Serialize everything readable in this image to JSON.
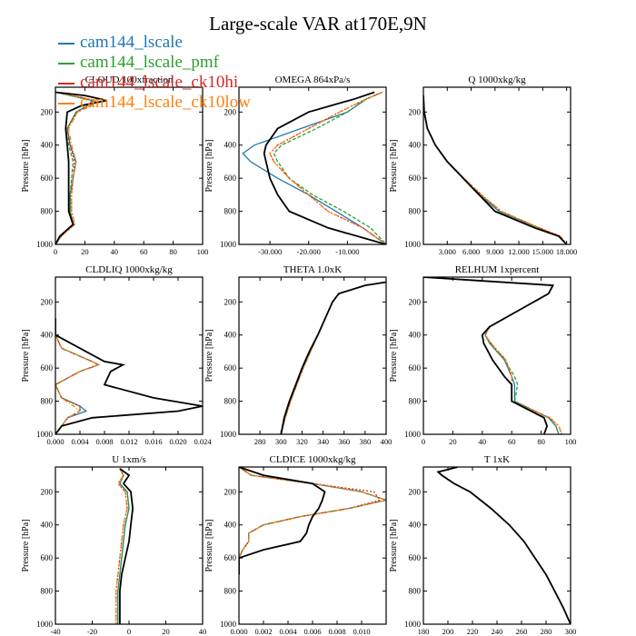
{
  "title": "Large-scale VAR at170E,9N",
  "legend": [
    {
      "name": "cam144_lscale",
      "color": "#1f77b4"
    },
    {
      "name": "cam144_lscale_pmf",
      "color": "#2ca02c"
    },
    {
      "name": "cam144_lscale_ck10hi",
      "color": "#d62728"
    },
    {
      "name": "cam144_lscale_ck10low",
      "color": "#ff7f0e"
    }
  ],
  "reference_line_color": "#000000",
  "chart_data": [
    {
      "type": "line",
      "title": "CLOUD 100xfraction",
      "ylabel": "Pressure [hPa]",
      "xlim": [
        0,
        100
      ],
      "ylim": [
        1000,
        50
      ],
      "xticks": [
        "0",
        "20",
        "40",
        "60",
        "80",
        "100"
      ],
      "xtick_values": [
        0,
        20,
        40,
        60,
        80,
        100
      ],
      "yticks": [
        "200",
        "400",
        "600",
        "800",
        "1000"
      ],
      "ytick_values": [
        200,
        400,
        600,
        800,
        1000
      ],
      "pressure": [
        80,
        100,
        130,
        160,
        200,
        300,
        400,
        500,
        600,
        700,
        800,
        880,
        950,
        1000
      ],
      "reference": [
        0,
        20,
        35,
        18,
        8,
        7,
        8,
        9,
        9,
        9,
        9,
        12,
        3,
        0
      ],
      "series": [
        {
          "values": [
            0,
            10,
            25,
            22,
            14,
            8,
            10,
            14,
            12,
            10,
            10,
            12,
            4,
            0
          ]
        },
        {
          "values": [
            0,
            10,
            26,
            22,
            14,
            8,
            9,
            12,
            11,
            10,
            10,
            12,
            4,
            0
          ]
        },
        {
          "values": [
            0,
            12,
            27,
            24,
            15,
            8,
            10,
            13,
            12,
            11,
            11,
            13,
            4,
            0
          ]
        },
        {
          "values": [
            0,
            12,
            28,
            25,
            15,
            9,
            11,
            14,
            12,
            11,
            11,
            13,
            4,
            0
          ]
        }
      ]
    },
    {
      "type": "line",
      "title": "OMEGA 864xPa/s",
      "ylabel": "Pressure [hPa]",
      "xlim": [
        -38,
        0
      ],
      "ylim": [
        1000,
        50
      ],
      "xticks": [
        "-30.000",
        "-20.000",
        "-10.000"
      ],
      "xtick_values": [
        -30,
        -20,
        -10
      ],
      "yticks": [
        "200",
        "400",
        "600",
        "800",
        "1000"
      ],
      "ytick_values": [
        200,
        400,
        600,
        800,
        1000
      ],
      "pressure": [
        80,
        120,
        200,
        300,
        400,
        450,
        500,
        600,
        700,
        800,
        900,
        1000
      ],
      "reference": [
        -3,
        -8,
        -20,
        -28,
        -31,
        -31.5,
        -31,
        -30,
        -28,
        -25,
        -15,
        0
      ],
      "series": [
        {
          "values": [
            -1,
            -5,
            -10,
            -22,
            -34,
            -37,
            -35,
            -28,
            -20,
            -13,
            -6,
            0
          ]
        },
        {
          "values": [
            -1,
            -5,
            -10,
            -18,
            -27,
            -29,
            -28,
            -25,
            -19,
            -11,
            -4,
            0
          ]
        },
        {
          "values": [
            -1,
            -5,
            -12,
            -20,
            -28,
            -30,
            -29,
            -25,
            -20,
            -15,
            -6,
            0
          ]
        },
        {
          "values": [
            -1,
            -5,
            -12,
            -20,
            -28,
            -30,
            -29,
            -25,
            -20,
            -15,
            -6,
            0
          ]
        }
      ]
    },
    {
      "type": "line",
      "title": "Q 1000xkg/kg",
      "ylabel": "Pressure [hPa]",
      "xlim": [
        0,
        18.5
      ],
      "ylim": [
        1000,
        50
      ],
      "xticks": [
        "3.000",
        "6.000",
        "9.000",
        "12.000",
        "15.000",
        "18.000"
      ],
      "xtick_values": [
        3,
        6,
        9,
        12,
        15,
        18
      ],
      "yticks": [
        "200",
        "400",
        "600",
        "800",
        "1000"
      ],
      "ytick_values": [
        200,
        400,
        600,
        800,
        1000
      ],
      "pressure": [
        100,
        200,
        300,
        400,
        500,
        600,
        700,
        800,
        900,
        950,
        1000
      ],
      "reference": [
        0,
        0.1,
        0.5,
        1.5,
        3,
        5,
        7,
        9,
        14,
        17,
        18
      ],
      "series": [
        {
          "values": [
            0,
            0.1,
            0.5,
            1.5,
            3,
            5,
            7,
            9.5,
            14.5,
            17,
            18
          ]
        },
        {
          "values": [
            0,
            0.1,
            0.5,
            1.5,
            3,
            5,
            7.2,
            9.6,
            14.5,
            17,
            18
          ]
        },
        {
          "values": [
            0,
            0.1,
            0.5,
            1.5,
            3,
            5.1,
            7.3,
            9.8,
            14.6,
            17.2,
            18
          ]
        },
        {
          "values": [
            0,
            0.1,
            0.5,
            1.5,
            3,
            5.1,
            7.3,
            9.8,
            14.6,
            17.2,
            18
          ]
        }
      ]
    },
    {
      "type": "line",
      "title": "CLDLIQ 1000xkg/kg",
      "ylabel": "Pressure [hPa]",
      "xlim": [
        0,
        0.024
      ],
      "ylim": [
        1000,
        50
      ],
      "xticks": [
        "0.000",
        "0.004",
        "0.008",
        "0.012",
        "0.016",
        "0.020",
        "0.024"
      ],
      "xtick_values": [
        0,
        0.004,
        0.008,
        0.012,
        0.016,
        0.02,
        0.024
      ],
      "yticks": [
        "200",
        "400",
        "600",
        "800",
        "1000"
      ],
      "ytick_values": [
        200,
        400,
        600,
        800,
        1000
      ],
      "pressure": [
        300,
        400,
        480,
        560,
        580,
        620,
        700,
        780,
        830,
        860,
        900,
        950,
        1000
      ],
      "reference": [
        0,
        0,
        0.004,
        0.008,
        0.011,
        0.009,
        0.008,
        0.016,
        0.024,
        0.02,
        0.006,
        0.001,
        0
      ],
      "series": [
        {
          "values": [
            0,
            0,
            0.001,
            0.006,
            0.007,
            0.004,
            0,
            0.001,
            0.004,
            0.005,
            0.002,
            0.001,
            0
          ]
        },
        {
          "values": [
            0,
            0,
            0.001,
            0.006,
            0.007,
            0.004,
            0,
            0.001,
            0.004,
            0.004,
            0.002,
            0.001,
            0
          ]
        },
        {
          "values": [
            0,
            0,
            0.001,
            0.006,
            0.007,
            0.004,
            0,
            0.001,
            0.004,
            0.004,
            0.002,
            0.001,
            0
          ]
        },
        {
          "values": [
            0,
            0,
            0.001,
            0.006,
            0.007,
            0.004,
            0,
            0.001,
            0.003,
            0.004,
            0.002,
            0.001,
            0
          ]
        }
      ]
    },
    {
      "type": "line",
      "title": "THETA 1.0xK",
      "ylabel": "Pressure [hPa]",
      "xlim": [
        260,
        400
      ],
      "ylim": [
        1000,
        50
      ],
      "xticks": [
        "280",
        "300",
        "320",
        "340",
        "360",
        "380",
        "400"
      ],
      "xtick_values": [
        280,
        300,
        320,
        340,
        360,
        380,
        400
      ],
      "yticks": [
        "200",
        "400",
        "600",
        "800",
        "1000"
      ],
      "ytick_values": [
        200,
        400,
        600,
        800,
        1000
      ],
      "pressure": [
        80,
        100,
        150,
        200,
        300,
        400,
        500,
        600,
        700,
        800,
        900,
        1000
      ],
      "reference": [
        400,
        380,
        355,
        349,
        342,
        335,
        327,
        320,
        314,
        308,
        303,
        300
      ],
      "series": [
        {
          "values": [
            400,
            380,
            355,
            349,
            342,
            335,
            328,
            321,
            315,
            309,
            304,
            300
          ]
        },
        {
          "values": [
            400,
            380,
            355,
            349,
            342,
            335,
            328,
            321,
            315,
            309,
            304,
            300
          ]
        },
        {
          "values": [
            400,
            380,
            355,
            349,
            342,
            335,
            328,
            321,
            315,
            309,
            304,
            300
          ]
        },
        {
          "values": [
            400,
            380,
            355,
            349,
            342,
            335,
            328,
            321,
            315,
            309,
            304,
            300
          ]
        }
      ]
    },
    {
      "type": "line",
      "title": "RELHUM 1xpercent",
      "ylabel": "Pressure [hPa]",
      "xlim": [
        0,
        100
      ],
      "ylim": [
        1000,
        50
      ],
      "xticks": [
        "0",
        "20",
        "40",
        "60",
        "80",
        "100"
      ],
      "xtick_values": [
        0,
        20,
        40,
        60,
        80,
        100
      ],
      "yticks": [
        "200",
        "400",
        "600",
        "800",
        "1000"
      ],
      "ytick_values": [
        200,
        400,
        600,
        800,
        1000
      ],
      "pressure": [
        50,
        100,
        150,
        250,
        350,
        400,
        450,
        550,
        650,
        700,
        800,
        900,
        950,
        1000
      ],
      "reference": [
        0,
        88,
        85,
        65,
        45,
        40,
        41,
        47,
        55,
        60,
        60,
        82,
        84,
        82
      ],
      "series": [
        {
          "values": [
            0,
            88,
            85,
            65,
            45,
            42,
            45,
            55,
            60,
            62,
            62,
            85,
            90,
            92
          ]
        },
        {
          "values": [
            0,
            88,
            85,
            65,
            45,
            42,
            45,
            55,
            62,
            64,
            62,
            85,
            90,
            92
          ]
        },
        {
          "values": [
            0,
            88,
            85,
            65,
            45,
            42,
            46,
            56,
            60,
            60,
            60,
            86,
            92,
            94
          ]
        },
        {
          "values": [
            0,
            88,
            85,
            65,
            45,
            42,
            46,
            56,
            60,
            60,
            60,
            86,
            92,
            94
          ]
        }
      ]
    },
    {
      "type": "line",
      "title": "U 1xm/s",
      "ylabel": "Pressure [hPa]",
      "xlim": [
        -40,
        40
      ],
      "ylim": [
        1000,
        50
      ],
      "xticks": [
        "-40",
        "-20",
        "0",
        "20",
        "40"
      ],
      "xtick_values": [
        -40,
        -20,
        0,
        20,
        40
      ],
      "yticks": [
        "200",
        "400",
        "600",
        "800",
        "1000"
      ],
      "ytick_values": [
        200,
        400,
        600,
        800,
        1000
      ],
      "pressure": [
        60,
        100,
        150,
        200,
        300,
        400,
        500,
        600,
        700,
        800,
        900,
        1000
      ],
      "reference": [
        -5,
        0,
        -3,
        1,
        2,
        1,
        0,
        -2,
        -4,
        -5,
        -5,
        -5
      ],
      "series": [
        {
          "values": [
            -5,
            -3,
            -5,
            -1,
            0,
            -2,
            -3,
            -4,
            -5,
            -6,
            -6,
            -6
          ]
        },
        {
          "values": [
            -5,
            -3,
            -5,
            -1,
            0,
            -2,
            -3,
            -4,
            -5,
            -6,
            -6,
            -6
          ]
        },
        {
          "values": [
            -5,
            -3,
            -6,
            -2,
            -1,
            -3,
            -4,
            -5,
            -6,
            -7,
            -7,
            -7
          ]
        },
        {
          "values": [
            -5,
            -3,
            -6,
            -2,
            -1,
            -3,
            -4,
            -5,
            -6,
            -7,
            -7,
            -7
          ]
        }
      ]
    },
    {
      "type": "line",
      "title": "CLDICE 1000xkg/kg",
      "ylabel": "Pressure [hPa]",
      "xlim": [
        0,
        0.012
      ],
      "ylim": [
        1000,
        50
      ],
      "xticks": [
        "0.000",
        "0.002",
        "0.004",
        "0.006",
        "0.008",
        "0.010"
      ],
      "xtick_values": [
        0,
        0.002,
        0.004,
        0.006,
        0.008,
        0.01
      ],
      "yticks": [
        "200",
        "400",
        "600",
        "800",
        "1000"
      ],
      "ytick_values": [
        200,
        400,
        600,
        800,
        1000
      ],
      "pressure": [
        50,
        100,
        150,
        200,
        250,
        300,
        350,
        400,
        450,
        500,
        550,
        600,
        700
      ],
      "reference": [
        0,
        0.002,
        0.006,
        0.007,
        0.0068,
        0.0065,
        0.006,
        0.0057,
        0.0055,
        0.005,
        0.002,
        0,
        0
      ],
      "series": [
        {
          "values": [
            0,
            0.001,
            0.006,
            0.01,
            0.012,
            0.009,
            0.005,
            0.002,
            0.0008,
            0.0008,
            0.0003,
            0,
            0
          ]
        },
        {
          "values": [
            0,
            0.001,
            0.006,
            0.01,
            0.012,
            0.009,
            0.005,
            0.002,
            0.0008,
            0.0008,
            0.0003,
            0,
            0
          ]
        },
        {
          "values": [
            0,
            0.001,
            0.006,
            0.011,
            0.0115,
            0.009,
            0.005,
            0.002,
            0.0008,
            0.0008,
            0.0003,
            0,
            0
          ]
        },
        {
          "values": [
            0,
            0.001,
            0.006,
            0.01,
            0.012,
            0.009,
            0.005,
            0.002,
            0.0008,
            0.0008,
            0.0003,
            0,
            0
          ]
        }
      ]
    },
    {
      "type": "line",
      "title": "T 1xK",
      "ylabel": "Pressure [hPa]",
      "xlim": [
        180,
        300
      ],
      "ylim": [
        1000,
        50
      ],
      "xticks": [
        "180",
        "200",
        "220",
        "240",
        "260",
        "280",
        "300"
      ],
      "xtick_values": [
        180,
        200,
        220,
        240,
        260,
        280,
        300
      ],
      "yticks": [
        "200",
        "400",
        "600",
        "800",
        "1000"
      ],
      "ytick_values": [
        200,
        400,
        600,
        800,
        1000
      ],
      "pressure": [
        50,
        80,
        100,
        150,
        200,
        300,
        400,
        500,
        600,
        700,
        800,
        900,
        1000
      ],
      "reference": [
        208,
        192,
        195,
        205,
        218,
        235,
        250,
        262,
        271,
        280,
        287,
        294,
        300
      ],
      "series": [
        {
          "values": [
            208,
            192,
            195,
            205,
            218,
            235,
            250,
            262,
            271,
            280,
            287,
            294,
            300
          ]
        },
        {
          "values": [
            208,
            192,
            195,
            205,
            218,
            235,
            250,
            262,
            271,
            280,
            287,
            294,
            300
          ]
        },
        {
          "values": [
            208,
            192,
            195,
            205,
            218,
            235,
            250,
            262,
            271,
            280,
            287,
            294,
            300
          ]
        },
        {
          "values": [
            208,
            192,
            195,
            205,
            218,
            235,
            250,
            262,
            271,
            280,
            287,
            294,
            300
          ]
        }
      ]
    }
  ]
}
